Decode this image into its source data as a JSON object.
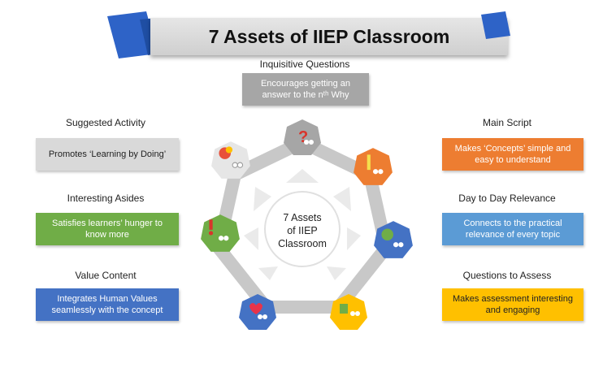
{
  "title": "7 Assets of IIEP Classroom",
  "center_label_lines": [
    "7 Assets",
    "of IIEP",
    "Classroom"
  ],
  "assets": {
    "inquisitive": {
      "heading": "Inquisitive Questions",
      "description": "Encourages getting an answer to the nᵗʰ Why",
      "color": "#a6a6a6"
    },
    "main_script": {
      "heading": "Main Script",
      "description": "Makes ‘Concepts’ simple and easy to understand",
      "color": "#ed7d31"
    },
    "relevance": {
      "heading": "Day to Day Relevance",
      "description": "Connects to the practical relevance of every topic",
      "color": "#5b9bd5"
    },
    "assess": {
      "heading": "Questions to Assess",
      "description": "Makes assessment interesting and engaging",
      "color": "#ffc000"
    },
    "value": {
      "heading": "Value Content",
      "description": "Integrates Human Values seamlessly with the concept",
      "color": "#4472c4"
    },
    "asides": {
      "heading": "Interesting Asides",
      "description": "Satisfies learners’ hunger to know more",
      "color": "#70ad47"
    },
    "activity": {
      "heading": "Suggested Activity",
      "description": "Promotes ‘Learning by Doing’",
      "color": "#d9d9d9"
    }
  },
  "colors": {
    "banner_accent": "#2e63c7",
    "ring": "#c8c8c8"
  },
  "icons": [
    "question-mark-icon",
    "pencil-icon",
    "globe-icon",
    "book-icon",
    "heart-icon",
    "exclamation-icon",
    "paint-splash-icon"
  ]
}
